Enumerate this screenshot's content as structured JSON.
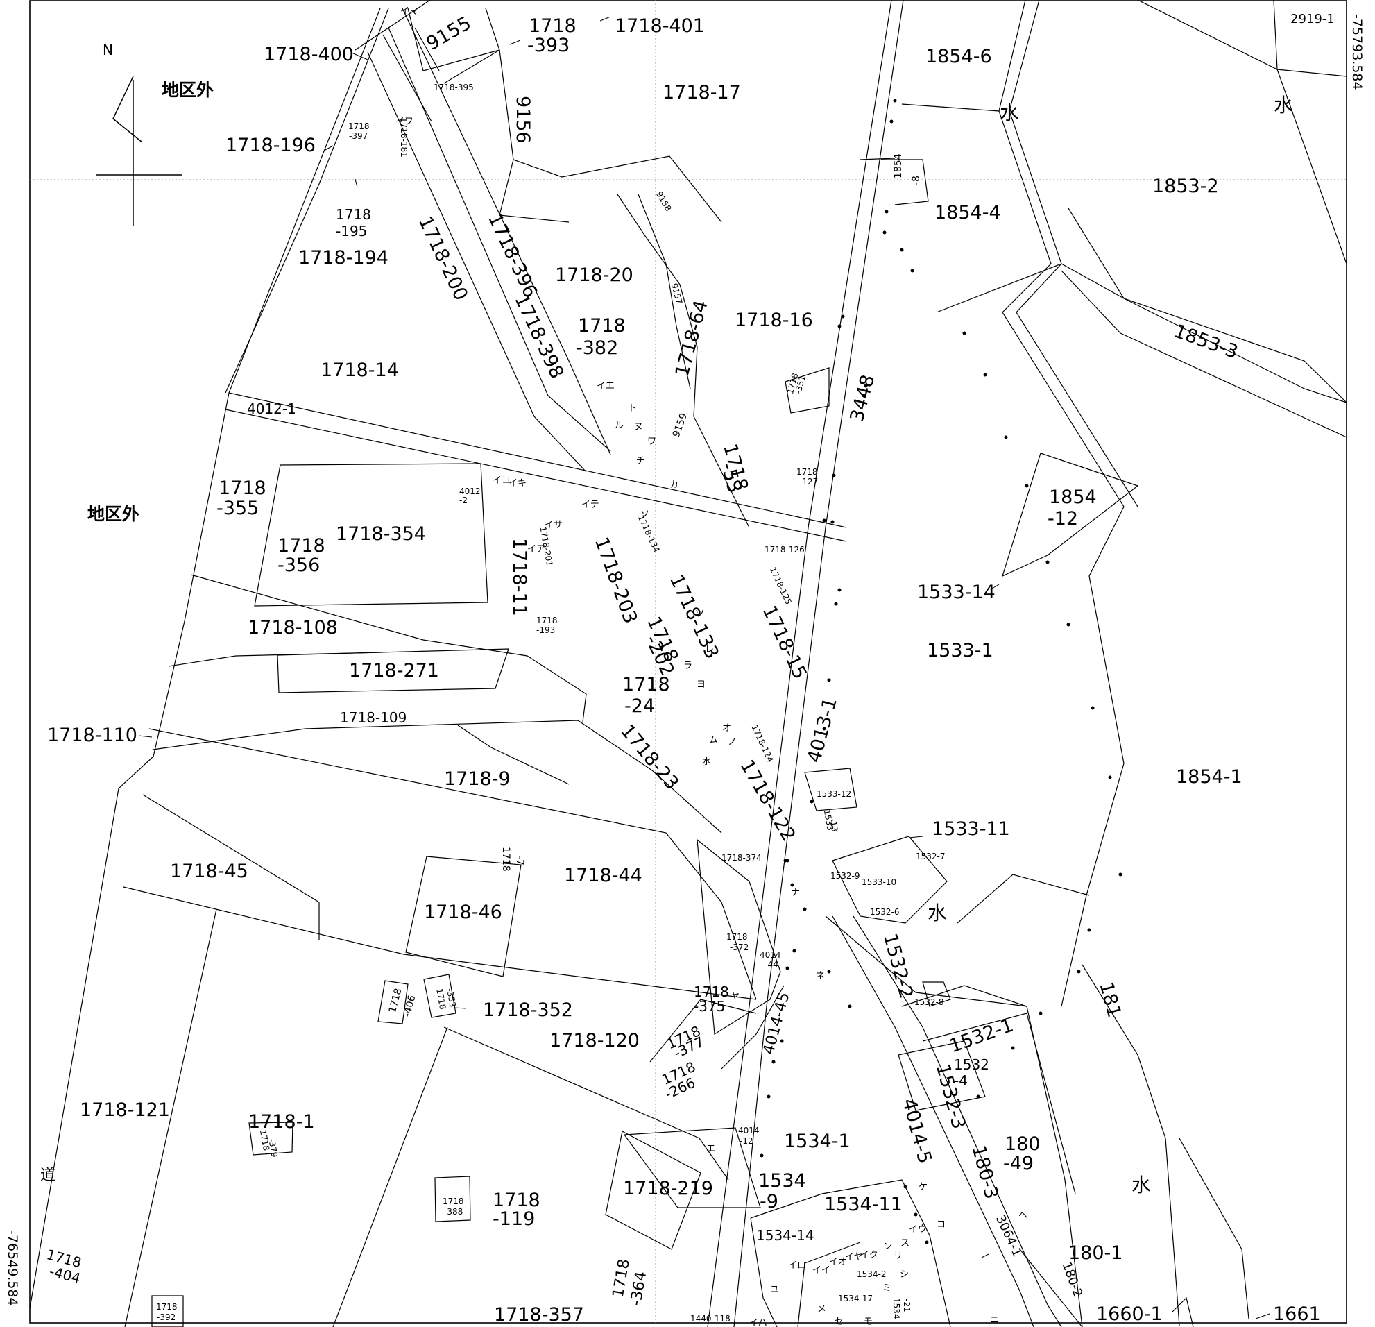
{
  "north_label": "N",
  "coords": {
    "top_right": "-75793.584",
    "bottom_left": "-76549.584"
  },
  "areas": {
    "outside_1": "地区外",
    "outside_2": "地区外",
    "water_1": "水",
    "water_2": "水",
    "water_3": "水",
    "water_4": "水",
    "water_5": "水",
    "road": "道"
  },
  "parcels": [
    "1718-401",
    "1718",
    "-393",
    "9155",
    "1718-400",
    "1718-395",
    "9156",
    "1718-17",
    "1854-6",
    "2919-1",
    "1718-196",
    "1718",
    "-397",
    "1718-181",
    "1853-2",
    "1854",
    "-8",
    "1854-4",
    "1718",
    "-195",
    "1718-200",
    "1718-194",
    "1718-396",
    "1718-20",
    "9158",
    "1718-16",
    "1853-3",
    "1718-398",
    "9157",
    "1718-64",
    "1718",
    "-382",
    "1718-14",
    "1718",
    "-351",
    "3448",
    "4012-1",
    "9159",
    "1718",
    "-53",
    "1718",
    "-127",
    "1718",
    "-355",
    "1718-354",
    "1718",
    "-356",
    "4012",
    "-2",
    "1718-11",
    "1718-201",
    "1718-203",
    "1718-134",
    "1718-126",
    "1854",
    "-12",
    "1533-14",
    "1718-125",
    "1718-133",
    "1718-108",
    "1718",
    "-193",
    "1718",
    "-202",
    "1718-15",
    "1533-1",
    "1718-271",
    "1718",
    "-24",
    "1718-109",
    "1718-110",
    "1718-124",
    "4013-1",
    "1718-23",
    "1718-9",
    "1718-122",
    "1533-12",
    "1533",
    "-13",
    "1854-1",
    "1533-11",
    "1718",
    "-7",
    "1718-374",
    "1532-7",
    "1718-45",
    "1718-44",
    "1532-9",
    "1533-10",
    "1718-46",
    "1532-6",
    "1718",
    "-372",
    "4014",
    "-44",
    "1532-2",
    "1718",
    "-406",
    "1718",
    "-353",
    "1718-352",
    "1718",
    "-375",
    "1532-8",
    "181",
    "1532-1",
    "1718-120",
    "1718",
    "-377",
    "4014-45",
    "1532",
    "-4",
    "1718-121",
    "1718-1",
    "1718",
    "-266",
    "1532-3",
    "4014-5",
    "180",
    "-49",
    "1718",
    "-379",
    "4014",
    "-12",
    "1534-1",
    "1534",
    "-9",
    "1718-219",
    "180-3",
    "1718",
    "-388",
    "1718",
    "-119",
    "1534-11",
    "3064-1",
    "1534-14",
    "180-1",
    "1534-2",
    "1534-17",
    "1534",
    "-21",
    "180-2",
    "1718",
    "-404",
    "1718",
    "-392",
    "1718-357",
    "1718",
    "-364",
    "1440-118",
    "1660-1",
    "1661"
  ],
  "kana_marks": [
    "イマ",
    "イフ",
    "イエ",
    "ト",
    "ル",
    "ヌ",
    "ワ",
    "チ",
    "カ",
    "イコ",
    "イキ",
    "イサ",
    "イテ",
    "ソ",
    "イア",
    "ツ",
    "ラ",
    "レ",
    "ヨ",
    "オ",
    "ノ",
    "ム",
    "ナ",
    "ネ",
    "ヤ",
    "エ",
    "ケ",
    "コ",
    "イウ",
    "イロ",
    "イイ",
    "イオ",
    "イヤ",
    "イク",
    "ン",
    "ス",
    "リ",
    "シ",
    "ミ",
    "ユ",
    "メ",
    "セ",
    "モ",
    "イハ",
    "ニ",
    "ヘ"
  ]
}
